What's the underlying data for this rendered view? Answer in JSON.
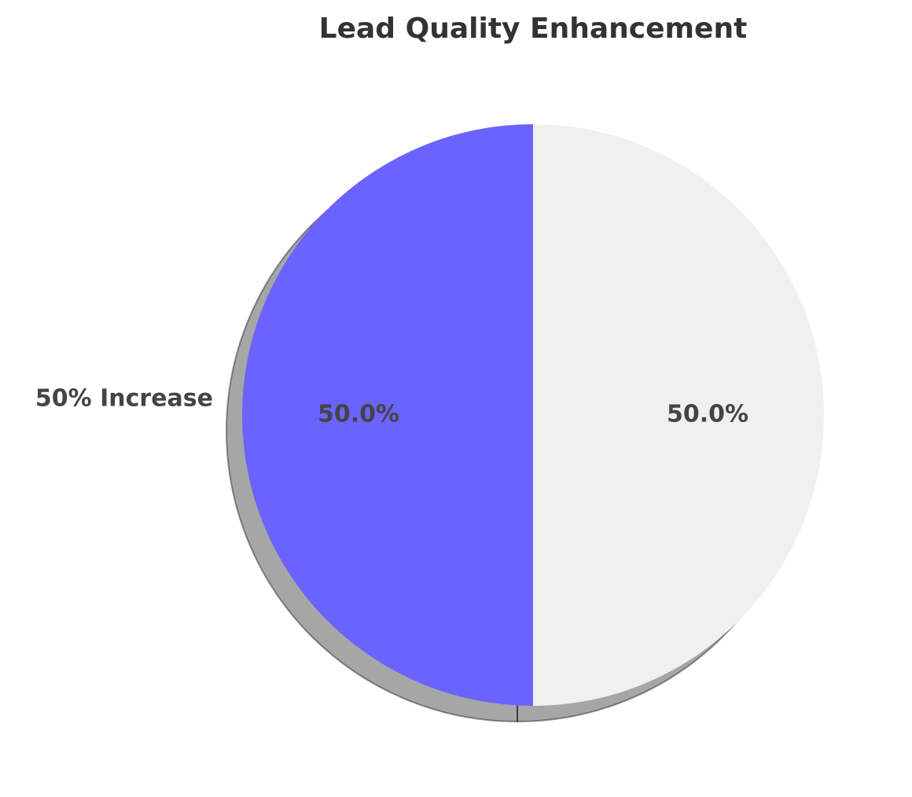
{
  "chart_data": {
    "type": "pie",
    "title": "Lead Quality Enhancement",
    "categories": [
      "50% Increase",
      null
    ],
    "values": [
      50,
      50
    ],
    "value_labels": [
      "50.0%",
      "50.0%"
    ],
    "colors": [
      "#6b63ff",
      "#f0f0f0"
    ],
    "start_angle": 90,
    "shadow": true
  }
}
